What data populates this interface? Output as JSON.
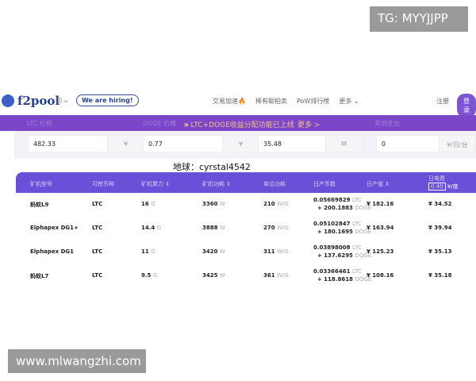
{
  "watermarks": {
    "top": "TG: MYYJJPP",
    "bottom": "www.mlwangzhi.com",
    "earth": "地球：cyrstal4542"
  },
  "nav": {
    "logo": "f2pool",
    "hiring": "We are hiring!",
    "menu": [
      "交易加速🔥",
      "稀有聪拍卖",
      "PoW排行榜",
      "更多 ⌄"
    ],
    "register": "注册",
    "login": "登录"
  },
  "banner": {
    "ltc_label": "LTC 价格",
    "doge_label": "DOGE 价格",
    "notice": "🕪 LTC+DOGE收益分配功能已上线",
    "more": "更多 >",
    "other_label": "其他支出"
  },
  "inputs": [
    {
      "value": "482.33",
      "unit": "¥"
    },
    {
      "value": "0.77",
      "unit": "¥"
    },
    {
      "value": "35.48",
      "unit": "M"
    },
    {
      "value": "0",
      "unit": "¥/日/台"
    }
  ],
  "table": {
    "headers": [
      "矿机型号",
      "可挖币种",
      "矿机算力 ⇕",
      "矿机功耗 ⇕",
      "单位功耗",
      "日产币数",
      "日产值 ⇕",
      "日电费"
    ],
    "fee_rate": "0.40",
    "fee_unit": "¥/度",
    "rows": [
      {
        "model": "蚂蚁L9",
        "coin": "LTC",
        "hash": "16",
        "hash_u": "G",
        "power": "3360",
        "power_u": "W",
        "eff": "210",
        "eff_u": "W/G",
        "ltc": "0.05669829",
        "doge": "+ 200.1883",
        "value": "¥ 182.16",
        "fee": "¥ 34.52"
      },
      {
        "model": "Elphapex DG1+",
        "coin": "LTC",
        "hash": "14.4",
        "hash_u": "G",
        "power": "3888",
        "power_u": "W",
        "eff": "270",
        "eff_u": "W/G",
        "ltc": "0.05102847",
        "doge": "+ 180.1695",
        "value": "¥ 163.94",
        "fee": "¥ 39.94"
      },
      {
        "model": "Elphapex DG1",
        "coin": "LTC",
        "hash": "11",
        "hash_u": "G",
        "power": "3420",
        "power_u": "W",
        "eff": "311",
        "eff_u": "W/G",
        "ltc": "0.03898008",
        "doge": "+ 137.6295",
        "value": "¥ 125.23",
        "fee": "¥ 35.13"
      },
      {
        "model": "蚂蚁L7",
        "coin": "LTC",
        "hash": "9.5",
        "hash_u": "G",
        "power": "3425",
        "power_u": "W",
        "eff": "361",
        "eff_u": "W/G",
        "ltc": "0.03366461",
        "doge": "+ 118.8618",
        "value": "¥ 108.16",
        "fee": "¥ 35.18"
      }
    ],
    "ltc_unit": "LTC",
    "doge_unit": "DOGE"
  }
}
